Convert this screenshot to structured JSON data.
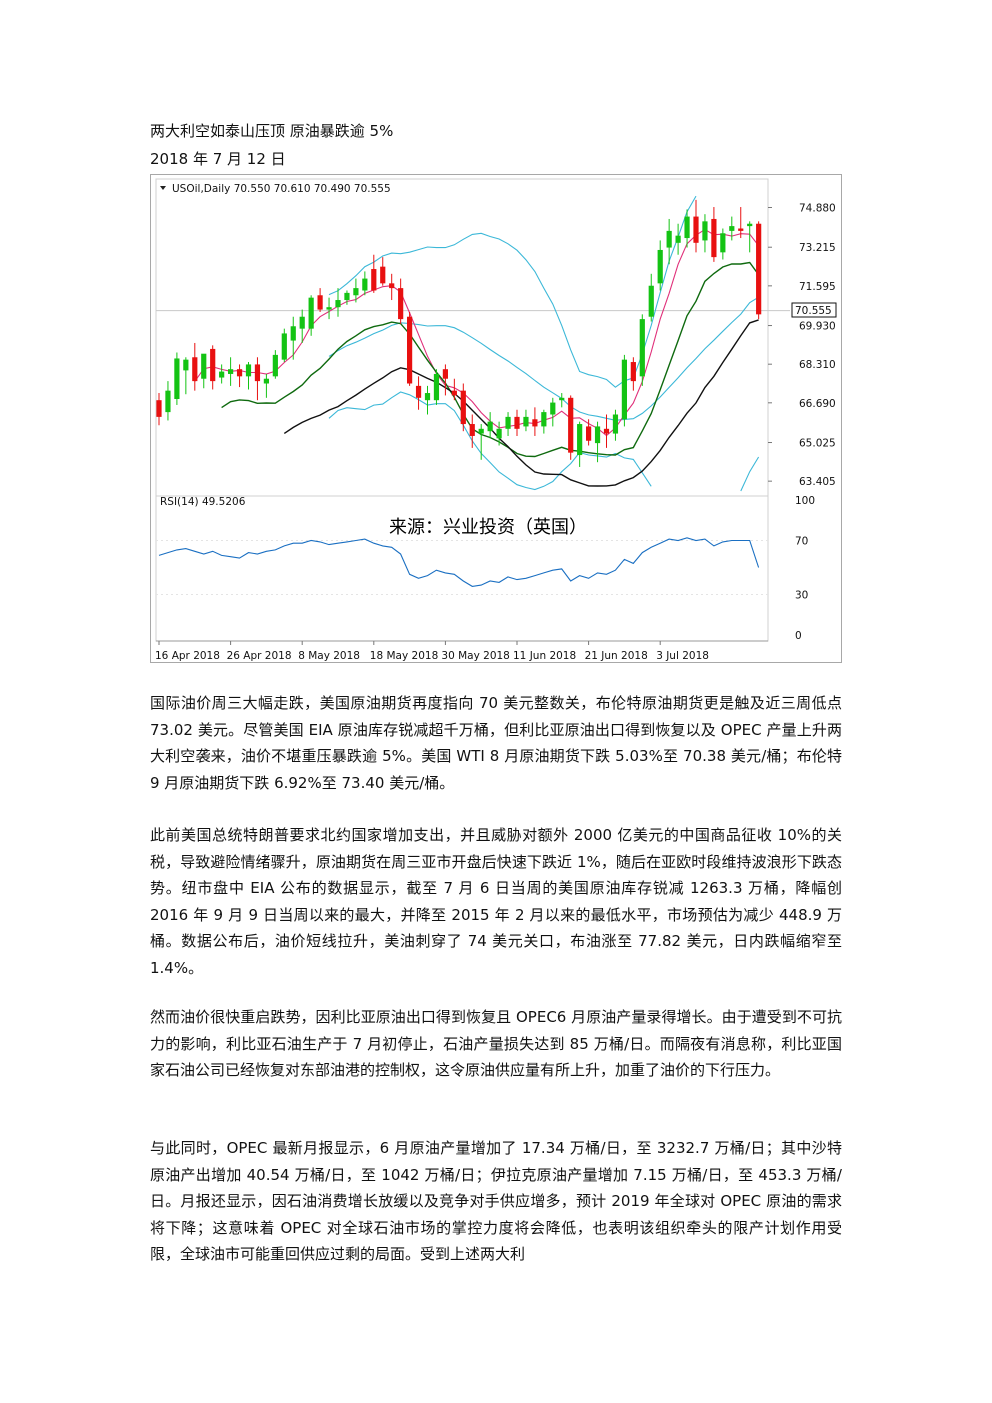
{
  "title": "两大利空如泰山压顶 原油暴跌逾 5%",
  "date": "2018 年 7 月 12 日",
  "paragraphs": [
    "国际油价周三大幅走跌，美国原油期货再度指向 70 美元整数关，布伦特原油期货更是触及近三周低点 73.02 美元。尽管美国 EIA 原油库存锐减超千万桶，但利比亚原油出口得到恢复以及 OPEC 产量上升两大利空袭来，油价不堪重压暴跌逾 5%。美国 WTI 8 月原油期货下跌 5.03%至 70.38 美元/桶；布伦特 9 月原油期货下跌 6.92%至 73.40 美元/桶。",
    "此前美国总统特朗普要求北约国家增加支出，并且威胁对额外 2000 亿美元的中国商品征收 10%的关税，导致避险情绪骤升，原油期货在周三亚市开盘后快速下跌近 1%，随后在亚欧时段维持波浪形下跌态势。纽市盘中 EIA 公布的数据显示，截至 7 月 6 日当周的美国原油库存锐减 1263.3 万桶，降幅创 2016 年 9 月 9 日当周以来的最大，并降至 2015 年 2 月以来的最低水平，市场预估为减少 448.9 万桶。数据公布后，油价短线拉升，美油刺穿了 74 美元关口，布油涨至 77.82 美元，日内跌幅缩窄至 1.4%。",
    "然而油价很快重启跌势，因利比亚原油出口得到恢复且 OPEC6 月原油产量录得增长。由于遭受到不可抗力的影响，利比亚石油生产于 7 月初停止，石油产量损失达到 85 万桶/日。而隔夜有消息称，利比亚国家石油公司已经恢复对东部油港的控制权，这令原油供应量有所上升，加重了油价的下行压力。",
    "与此同时，OPEC 最新月报显示，6 月原油产量增加了 17.34 万桶/日，至 3232.7 万桶/日；其中沙特原油产出增加 40.54 万桶/日，至 1042 万桶/日；伊拉克原油产量增加 7.15 万桶/日，至 453.3 万桶/日。月报还显示，因石油消费增长放缓以及竞争对手供应增多，预计 2019 年全球对 OPEC 原油的需求将下降；这意味着 OPEC 对全球石油市场的掌控力度将会降低，也表明该组织牵头的限产计划作用受限，全球油市可能重回供应过剩的局面。受到上述两大利"
  ],
  "chart": {
    "header": "USOil,Daily  70.550 70.610 70.490 70.555",
    "header_icon": "triangle-down-icon",
    "rsi_label": "RSI(14) 49.5206",
    "source_label": "来源：兴业投资（英国）",
    "price_marker": "70.555",
    "colors": {
      "bull": "#14c314",
      "bear": "#e81010",
      "bollinger": "#3cb8d8",
      "ma_fast": "#e0307a",
      "ma_mid": "#0f6a0f",
      "ma_slow": "#111111",
      "rsi": "#1a6fc2",
      "price_marker_bg": "#ffffff"
    }
  },
  "chart_data": {
    "type": "candlestick",
    "title": "USOil,Daily",
    "ohlc_header": [
      70.55,
      70.61,
      70.49,
      70.555
    ],
    "price_ticks": [
      "74.880",
      "73.215",
      "71.595",
      "69.930",
      "68.310",
      "66.690",
      "65.025",
      "63.405"
    ],
    "price_tick_values": [
      74.88,
      73.215,
      71.595,
      69.93,
      68.31,
      66.69,
      65.025,
      63.405
    ],
    "ylim": [
      62.95,
      75.95
    ],
    "rsi_ticks": [
      "100",
      "70",
      "30",
      "0"
    ],
    "rsi_tick_values": [
      100,
      70,
      30,
      0
    ],
    "x_tick_labels": [
      "16 Apr 2018",
      "26 Apr 2018",
      "8 May 2018",
      "18 May 2018",
      "30 May 2018",
      "11 Jun 2018",
      "21 Jun 2018",
      "3 Jul 2018"
    ],
    "x_tick_index": [
      0,
      8,
      16,
      24,
      32,
      40,
      48,
      56
    ],
    "candles": [
      {
        "o": 66.8,
        "h": 67.1,
        "l": 65.75,
        "c": 66.1
      },
      {
        "o": 66.3,
        "h": 67.6,
        "l": 65.95,
        "c": 67.2
      },
      {
        "o": 66.85,
        "h": 68.8,
        "l": 66.6,
        "c": 68.55
      },
      {
        "o": 68.05,
        "h": 68.6,
        "l": 67.05,
        "c": 68.5
      },
      {
        "o": 68.6,
        "h": 69.2,
        "l": 67.2,
        "c": 67.6
      },
      {
        "o": 67.7,
        "h": 68.7,
        "l": 67.3,
        "c": 68.75
      },
      {
        "o": 68.95,
        "h": 69.1,
        "l": 67.25,
        "c": 67.6
      },
      {
        "o": 67.75,
        "h": 68.3,
        "l": 67.5,
        "c": 68.0
      },
      {
        "o": 67.9,
        "h": 68.6,
        "l": 67.4,
        "c": 68.1
      },
      {
        "o": 68.1,
        "h": 68.3,
        "l": 67.35,
        "c": 67.8
      },
      {
        "o": 67.8,
        "h": 68.4,
        "l": 67.25,
        "c": 68.3
      },
      {
        "o": 68.3,
        "h": 68.6,
        "l": 66.8,
        "c": 67.6
      },
      {
        "o": 67.5,
        "h": 67.9,
        "l": 66.9,
        "c": 67.7
      },
      {
        "o": 67.8,
        "h": 68.9,
        "l": 67.7,
        "c": 68.7
      },
      {
        "o": 68.5,
        "h": 69.8,
        "l": 68.4,
        "c": 69.6
      },
      {
        "o": 69.3,
        "h": 70.3,
        "l": 68.5,
        "c": 69.9
      },
      {
        "o": 69.8,
        "h": 70.6,
        "l": 69.2,
        "c": 70.3
      },
      {
        "o": 69.8,
        "h": 71.2,
        "l": 69.5,
        "c": 71.1
      },
      {
        "o": 71.2,
        "h": 71.5,
        "l": 70.5,
        "c": 70.6
      },
      {
        "o": 70.6,
        "h": 71.1,
        "l": 70.2,
        "c": 70.7
      },
      {
        "o": 70.7,
        "h": 71.5,
        "l": 70.3,
        "c": 71.0
      },
      {
        "o": 71.0,
        "h": 71.4,
        "l": 70.8,
        "c": 71.3
      },
      {
        "o": 71.2,
        "h": 71.9,
        "l": 70.9,
        "c": 71.5
      },
      {
        "o": 71.4,
        "h": 72.2,
        "l": 71.2,
        "c": 71.9
      },
      {
        "o": 72.3,
        "h": 72.9,
        "l": 71.3,
        "c": 71.4
      },
      {
        "o": 72.4,
        "h": 72.8,
        "l": 71.6,
        "c": 71.7
      },
      {
        "o": 71.7,
        "h": 72.1,
        "l": 71.0,
        "c": 71.5
      },
      {
        "o": 71.5,
        "h": 71.9,
        "l": 70.0,
        "c": 70.2
      },
      {
        "o": 70.3,
        "h": 70.5,
        "l": 67.4,
        "c": 67.5
      },
      {
        "o": 67.4,
        "h": 67.8,
        "l": 66.4,
        "c": 66.9
      },
      {
        "o": 66.8,
        "h": 67.4,
        "l": 66.2,
        "c": 67.1
      },
      {
        "o": 66.8,
        "h": 68.1,
        "l": 66.6,
        "c": 67.9
      },
      {
        "o": 68.1,
        "h": 68.3,
        "l": 67.0,
        "c": 67.7
      },
      {
        "o": 67.2,
        "h": 67.7,
        "l": 66.8,
        "c": 67.0
      },
      {
        "o": 67.2,
        "h": 67.5,
        "l": 65.5,
        "c": 65.8
      },
      {
        "o": 65.8,
        "h": 66.2,
        "l": 64.8,
        "c": 65.3
      },
      {
        "o": 65.4,
        "h": 65.8,
        "l": 64.3,
        "c": 65.6
      },
      {
        "o": 65.5,
        "h": 66.3,
        "l": 65.2,
        "c": 65.9
      },
      {
        "o": 65.2,
        "h": 65.9,
        "l": 64.9,
        "c": 65.6
      },
      {
        "o": 65.6,
        "h": 66.3,
        "l": 65.3,
        "c": 66.1
      },
      {
        "o": 66.1,
        "h": 66.4,
        "l": 65.3,
        "c": 65.6
      },
      {
        "o": 65.7,
        "h": 66.4,
        "l": 65.5,
        "c": 66.1
      },
      {
        "o": 66.0,
        "h": 66.5,
        "l": 65.3,
        "c": 65.7
      },
      {
        "o": 65.7,
        "h": 66.4,
        "l": 65.4,
        "c": 66.3
      },
      {
        "o": 66.2,
        "h": 66.9,
        "l": 65.7,
        "c": 66.7
      },
      {
        "o": 66.8,
        "h": 67.1,
        "l": 66.5,
        "c": 66.9
      },
      {
        "o": 66.9,
        "h": 67.0,
        "l": 64.3,
        "c": 64.6
      },
      {
        "o": 64.5,
        "h": 65.9,
        "l": 64.0,
        "c": 65.8
      },
      {
        "o": 65.7,
        "h": 66.0,
        "l": 64.9,
        "c": 65.1
      },
      {
        "o": 65.0,
        "h": 65.9,
        "l": 64.2,
        "c": 65.7
      },
      {
        "o": 65.6,
        "h": 66.2,
        "l": 64.8,
        "c": 65.4
      },
      {
        "o": 65.4,
        "h": 66.4,
        "l": 65.1,
        "c": 66.2
      },
      {
        "o": 66.0,
        "h": 68.7,
        "l": 65.7,
        "c": 68.5
      },
      {
        "o": 68.4,
        "h": 68.6,
        "l": 67.2,
        "c": 67.6
      },
      {
        "o": 67.8,
        "h": 70.4,
        "l": 67.4,
        "c": 70.2
      },
      {
        "o": 70.3,
        "h": 72.1,
        "l": 70.1,
        "c": 71.6
      },
      {
        "o": 71.7,
        "h": 73.5,
        "l": 71.4,
        "c": 73.1
      },
      {
        "o": 73.2,
        "h": 74.4,
        "l": 72.5,
        "c": 73.9
      },
      {
        "o": 73.4,
        "h": 74.2,
        "l": 72.9,
        "c": 73.7
      },
      {
        "o": 73.6,
        "h": 74.8,
        "l": 73.2,
        "c": 74.5
      },
      {
        "o": 74.5,
        "h": 75.2,
        "l": 73.0,
        "c": 73.4
      },
      {
        "o": 73.5,
        "h": 74.6,
        "l": 73.0,
        "c": 74.3
      },
      {
        "o": 74.4,
        "h": 74.9,
        "l": 72.6,
        "c": 72.8
      },
      {
        "o": 73.0,
        "h": 74.0,
        "l": 72.7,
        "c": 73.8
      },
      {
        "o": 73.9,
        "h": 74.5,
        "l": 73.5,
        "c": 74.1
      },
      {
        "o": 74.0,
        "h": 74.9,
        "l": 73.6,
        "c": 73.9
      },
      {
        "o": 74.1,
        "h": 74.3,
        "l": 73.0,
        "c": 74.2
      },
      {
        "o": 74.2,
        "h": 74.3,
        "l": 70.2,
        "c": 70.4
      }
    ],
    "rsi": [
      59,
      61,
      63,
      64,
      62,
      60,
      62,
      59,
      58,
      57,
      61,
      60,
      62,
      63,
      66,
      68,
      68,
      70,
      69,
      67,
      68,
      69,
      70,
      71,
      68,
      66,
      65,
      60,
      45,
      42,
      44,
      48,
      46,
      45,
      40,
      36,
      37,
      40,
      39,
      43,
      41,
      42,
      44,
      46,
      48,
      49,
      40,
      44,
      42,
      46,
      45,
      48,
      56,
      53,
      61,
      65,
      68,
      71,
      70,
      72,
      70,
      71,
      66,
      69,
      70,
      70,
      70,
      50
    ]
  }
}
